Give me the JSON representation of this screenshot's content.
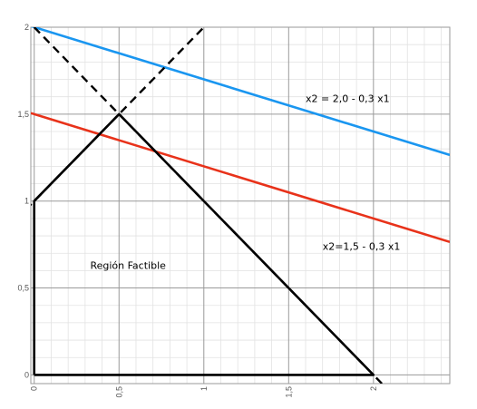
{
  "chart_data": {
    "type": "line",
    "title": "",
    "xlabel": "",
    "ylabel": "",
    "xlim": [
      -0.02,
      2.45
    ],
    "ylim": [
      -0.05,
      2.0
    ],
    "grid": true,
    "x_ticks": [
      {
        "value": 0,
        "label": "0"
      },
      {
        "value": 0.5,
        "label": "0,5"
      },
      {
        "value": 1,
        "label": "1"
      },
      {
        "value": 1.5,
        "label": "1,5"
      },
      {
        "value": 2,
        "label": "2"
      }
    ],
    "y_ticks": [
      {
        "value": 0,
        "label": "0"
      },
      {
        "value": 0.5,
        "label": "0,5"
      },
      {
        "value": 1,
        "label": "1"
      },
      {
        "value": 1.5,
        "label": "1,5"
      },
      {
        "value": 2,
        "label": "2"
      }
    ],
    "series": [
      {
        "color": "#1a96f0",
        "style": "solid",
        "x": [
          -0.02,
          2.45
        ],
        "y": [
          2.006,
          1.265
        ]
      },
      {
        "color": "#e8321a",
        "style": "solid",
        "x": [
          -0.02,
          2.45
        ],
        "y": [
          1.506,
          0.765
        ]
      },
      {
        "color": "#000000",
        "style": "dashed",
        "x": [
          -0.05,
          1.0
        ],
        "y": [
          0.95,
          2.0
        ]
      },
      {
        "color": "#000000",
        "style": "dashed",
        "x": [
          0.0,
          2.1
        ],
        "y": [
          2.0,
          -0.1
        ]
      },
      {
        "color": "#000000",
        "style": "solid",
        "x": [
          0.0,
          0.0,
          0.5,
          2.0,
          0.0
        ],
        "y": [
          0.0,
          1.0,
          1.5,
          0.0,
          0.0
        ]
      }
    ],
    "annotations": [
      {
        "text": "x2 = 2,0 - 0,3 x1",
        "x": 1.6,
        "y": 1.57
      },
      {
        "text": "x2=1,5 - 0,3 x1",
        "x": 1.7,
        "y": 0.72
      },
      {
        "text": "Región Factible",
        "x": 0.33,
        "y": 0.61
      }
    ]
  }
}
